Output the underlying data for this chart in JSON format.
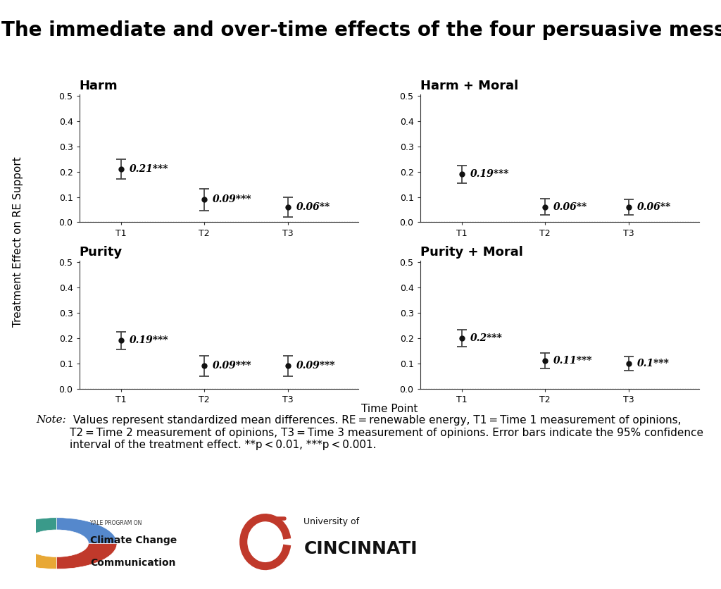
{
  "title": "The immediate and over-time effects of the four persuasive messages",
  "subplots": [
    {
      "title": "Harm",
      "timepoints": [
        "T1",
        "T2",
        "T3"
      ],
      "values": [
        0.21,
        0.09,
        0.06
      ],
      "errors_lo": [
        0.038,
        0.043,
        0.04
      ],
      "errors_hi": [
        0.038,
        0.043,
        0.04
      ],
      "labels": [
        "0.21***",
        "0.09***",
        "0.06**"
      ]
    },
    {
      "title": "Harm + Moral",
      "timepoints": [
        "T1",
        "T2",
        "T3"
      ],
      "values": [
        0.19,
        0.06,
        0.06
      ],
      "errors_lo": [
        0.035,
        0.032,
        0.03
      ],
      "errors_hi": [
        0.035,
        0.032,
        0.03
      ],
      "labels": [
        "0.19***",
        "0.06**",
        "0.06**"
      ]
    },
    {
      "title": "Purity",
      "timepoints": [
        "T1",
        "T2",
        "T3"
      ],
      "values": [
        0.19,
        0.09,
        0.09
      ],
      "errors_lo": [
        0.035,
        0.04,
        0.04
      ],
      "errors_hi": [
        0.035,
        0.04,
        0.04
      ],
      "labels": [
        "0.19***",
        "0.09***",
        "0.09***"
      ]
    },
    {
      "title": "Purity + Moral",
      "timepoints": [
        "T1",
        "T2",
        "T3"
      ],
      "values": [
        0.2,
        0.11,
        0.1
      ],
      "errors_lo": [
        0.033,
        0.03,
        0.028
      ],
      "errors_hi": [
        0.033,
        0.03,
        0.028
      ],
      "labels": [
        "0.2***",
        "0.11***",
        "0.1***"
      ]
    }
  ],
  "ylabel": "Treatment Effect on RE Support",
  "xlabel": "Time Point",
  "ylim": [
    0.0,
    0.5
  ],
  "yticks": [
    0.0,
    0.1,
    0.2,
    0.3,
    0.4,
    0.5
  ],
  "background_color": "#ffffff",
  "point_color": "#111111",
  "errorbar_color": "#444444",
  "title_fontsize": 20,
  "subplot_title_fontsize": 13,
  "label_fontsize": 10,
  "tick_fontsize": 9,
  "note_fontsize": 11,
  "ylabel_fontsize": 11,
  "xlabel_fontsize": 11
}
